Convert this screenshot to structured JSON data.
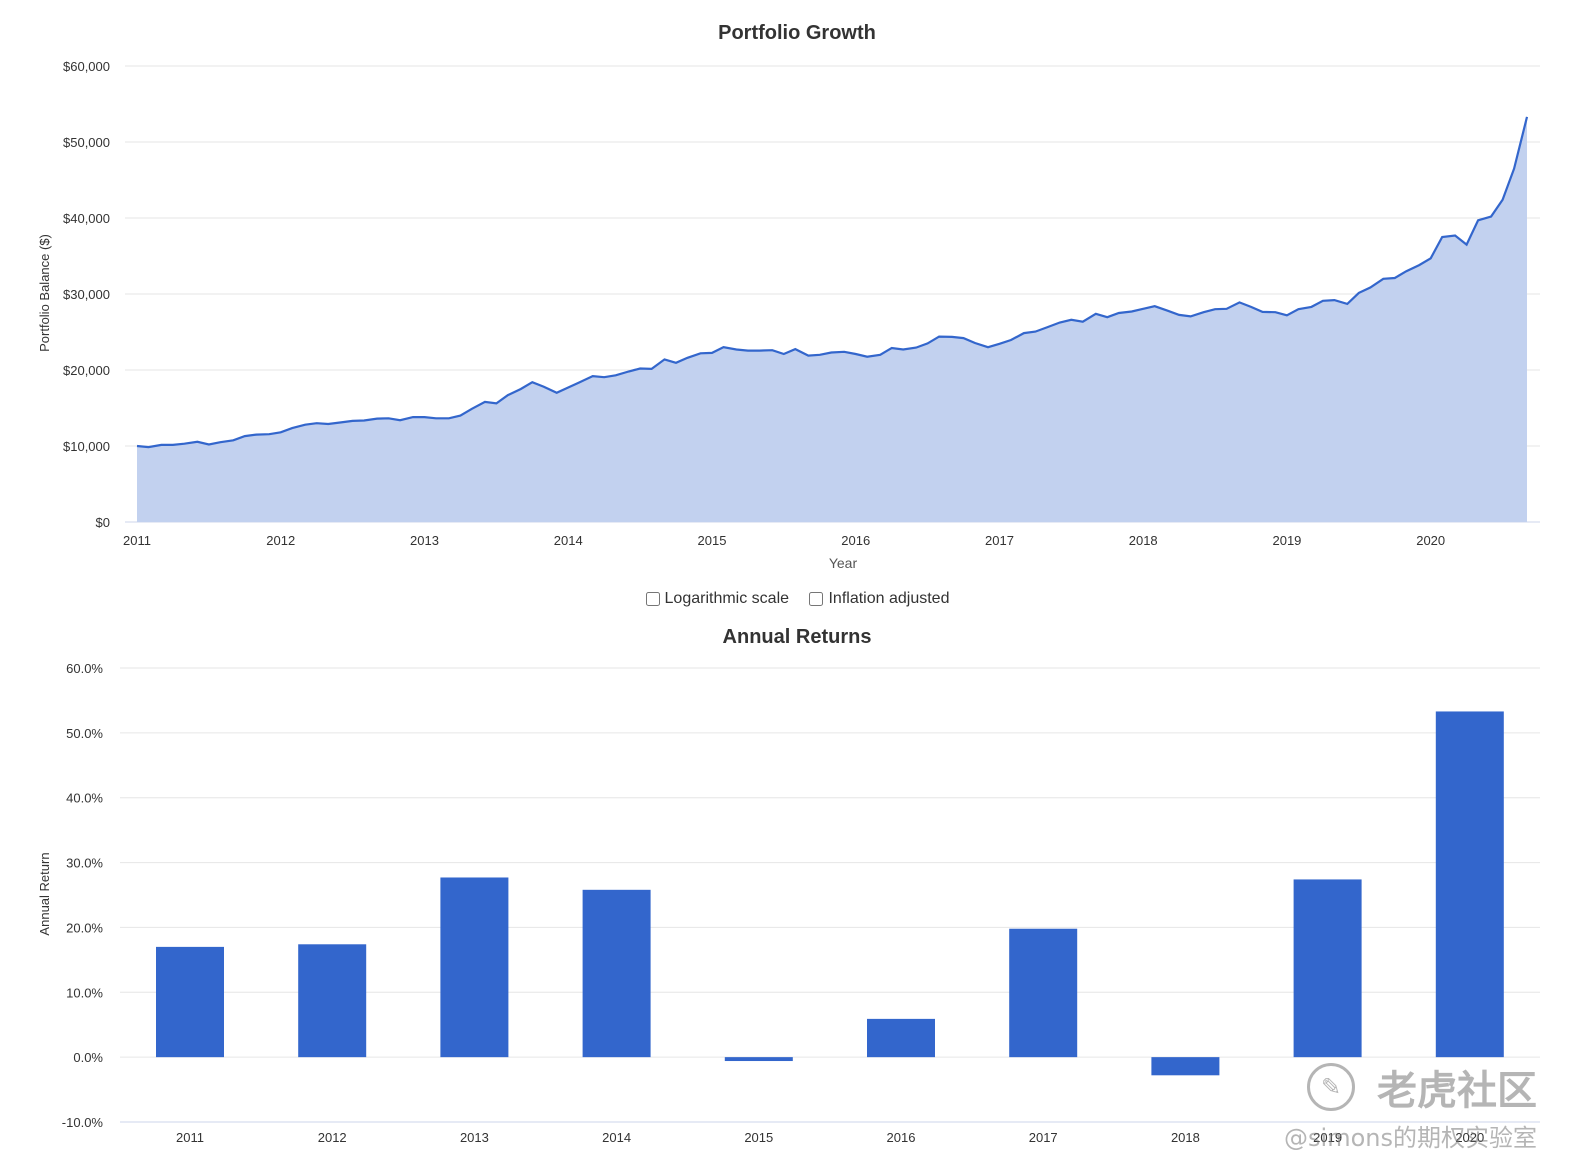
{
  "chart_data": [
    {
      "type": "area",
      "title": "Portfolio Growth",
      "xlabel": "Year",
      "ylabel": "Portfolio Balance ($)",
      "x_ticks": [
        "2011",
        "2012",
        "2013",
        "2014",
        "2015",
        "2016",
        "2017",
        "2018",
        "2019",
        "2020"
      ],
      "y_ticks": [
        "$0",
        "$10,000",
        "$20,000",
        "$30,000",
        "$40,000",
        "$50,000",
        "$60,000"
      ],
      "ylim": [
        0,
        60000
      ],
      "xlim": [
        2011.0,
        2020.67
      ],
      "grid": true,
      "color": "#3366cc",
      "fill_color": "#c2d1ef",
      "series": [
        {
          "x": [
            2011.0,
            2011.08,
            2011.17,
            2011.25,
            2011.33,
            2011.42,
            2011.5,
            2011.58,
            2011.67,
            2011.75,
            2011.83,
            2011.92,
            2012.0,
            2012.08,
            2012.17,
            2012.25,
            2012.33,
            2012.42,
            2012.5,
            2012.58,
            2012.67,
            2012.75,
            2012.83,
            2012.92,
            2013.0,
            2013.08,
            2013.17,
            2013.25,
            2013.33,
            2013.42,
            2013.5,
            2013.58,
            2013.67,
            2013.75,
            2013.83,
            2013.92,
            2014.0,
            2014.08,
            2014.17,
            2014.25,
            2014.33,
            2014.42,
            2014.5,
            2014.58,
            2014.67,
            2014.75,
            2014.83,
            2014.92,
            2015.0,
            2015.08,
            2015.17,
            2015.25,
            2015.33,
            2015.42,
            2015.5,
            2015.58,
            2015.67,
            2015.75,
            2015.83,
            2015.92,
            2016.0,
            2016.08,
            2016.17,
            2016.25,
            2016.33,
            2016.42,
            2016.5,
            2016.58,
            2016.67,
            2016.75,
            2016.83,
            2016.92,
            2017.0,
            2017.08,
            2017.17,
            2017.25,
            2017.33,
            2017.42,
            2017.5,
            2017.58,
            2017.67,
            2017.75,
            2017.83,
            2017.92,
            2018.0,
            2018.08,
            2018.17,
            2018.25,
            2018.33,
            2018.42,
            2018.5,
            2018.58,
            2018.67,
            2018.75,
            2018.83,
            2018.92,
            2019.0,
            2019.08,
            2019.17,
            2019.25,
            2019.33,
            2019.42,
            2019.5,
            2019.58,
            2019.67,
            2019.75,
            2019.83,
            2019.92,
            2020.0,
            2020.08,
            2020.17,
            2020.25,
            2020.33,
            2020.42,
            2020.5,
            2020.58,
            2020.67
          ],
          "y": [
            10000,
            9850,
            10150,
            10150,
            10300,
            10550,
            10200,
            10500,
            10750,
            11300,
            11500,
            11550,
            11800,
            12350,
            12800,
            13000,
            12900,
            13100,
            13300,
            13350,
            13600,
            13650,
            13400,
            13800,
            13800,
            13650,
            13650,
            14000,
            14900,
            15800,
            15600,
            16700,
            17500,
            18400,
            17800,
            17000,
            17700,
            18400,
            19200,
            19050,
            19300,
            19800,
            20200,
            20150,
            21400,
            20950,
            21600,
            22200,
            22250,
            23000,
            22700,
            22550,
            22550,
            22600,
            22100,
            22750,
            21900,
            22000,
            22300,
            22400,
            22100,
            21750,
            22000,
            22900,
            22700,
            22950,
            23500,
            24400,
            24350,
            24200,
            23550,
            23000,
            23450,
            23950,
            24850,
            25050,
            25600,
            26250,
            26600,
            26350,
            27400,
            26950,
            27500,
            27700,
            28050,
            28400,
            27800,
            27250,
            27050,
            27600,
            28000,
            28050,
            28900,
            28300,
            27650,
            27600,
            27200,
            28000,
            28300,
            29100,
            29200,
            28700,
            30150,
            30850,
            32000,
            32100,
            33000,
            33800,
            34700,
            37500,
            37700,
            36500,
            39700,
            40200,
            42400,
            46500,
            53300
          ]
        }
      ]
    },
    {
      "type": "bar",
      "title": "Annual Returns",
      "xlabel": "",
      "ylabel": "Annual Return",
      "categories": [
        "2011",
        "2012",
        "2013",
        "2014",
        "2015",
        "2016",
        "2017",
        "2018",
        "2019",
        "2020"
      ],
      "values": [
        17.0,
        17.4,
        27.7,
        25.8,
        -0.6,
        5.9,
        19.8,
        -2.8,
        27.4,
        53.3
      ],
      "y_ticks": [
        "-10.0%",
        "0.0%",
        "10.0%",
        "20.0%",
        "30.0%",
        "40.0%",
        "50.0%",
        "60.0%"
      ],
      "ylim": [
        -10,
        60
      ],
      "grid": true,
      "color": "#3366cc"
    }
  ],
  "controls": {
    "log_scale_label": "Logarithmic scale",
    "log_scale_checked": false,
    "inflation_label": "Inflation adjusted",
    "inflation_checked": false
  },
  "watermark": {
    "brand": "老虎社区",
    "handle": "@simons的期权实验室"
  }
}
